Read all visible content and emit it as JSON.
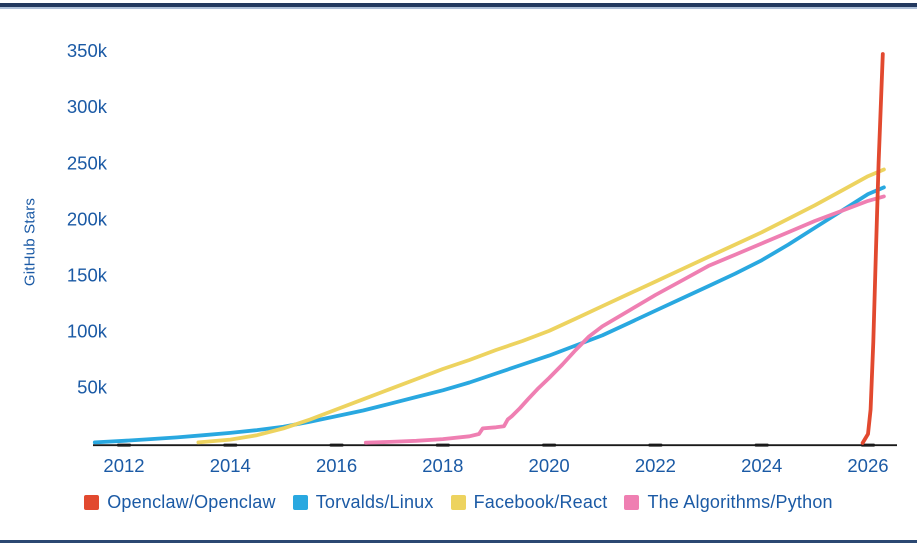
{
  "frame": {
    "top_rule_color": "#23395F",
    "top_rule_accent_color": "#AFC0D8",
    "bottom_rule_color": "#2B4872"
  },
  "chart_data": {
    "type": "line",
    "title": "",
    "xlabel": "",
    "ylabel": "GitHub Stars",
    "x_tick_labels": [
      "2012",
      "2014",
      "2016",
      "2018",
      "2020",
      "2022",
      "2024",
      "2026"
    ],
    "x_tick_values": [
      2012,
      2014,
      2016,
      2018,
      2020,
      2022,
      2024,
      2026
    ],
    "y_tick_labels": [
      "50k",
      "100k",
      "150k",
      "200k",
      "250k",
      "300k",
      "350k"
    ],
    "y_tick_values": [
      50,
      100,
      150,
      200,
      250,
      300,
      350
    ],
    "xlim": [
      2011.4,
      2026.55
    ],
    "ylim": [
      0,
      358
    ],
    "grid": false,
    "legend_position": "bottom",
    "axis_color": "#1a1a1a",
    "label_color": "#1B5AA5",
    "series": [
      {
        "name": "Openclaw/Openclaw",
        "color": "#E2492F",
        "draw_order": 4,
        "points": [
          [
            2025.9,
            0
          ],
          [
            2026.0,
            8
          ],
          [
            2026.05,
            30
          ],
          [
            2026.1,
            90
          ],
          [
            2026.15,
            170
          ],
          [
            2026.2,
            250
          ],
          [
            2026.28,
            347
          ]
        ]
      },
      {
        "name": "Torvalds/Linux",
        "color": "#29A8E0",
        "draw_order": 1,
        "points": [
          [
            2011.45,
            0.5
          ],
          [
            2012,
            2
          ],
          [
            2012.5,
            3.5
          ],
          [
            2013,
            5
          ],
          [
            2013.5,
            7
          ],
          [
            2014,
            9
          ],
          [
            2014.5,
            11.5
          ],
          [
            2015,
            14.5
          ],
          [
            2015.5,
            19
          ],
          [
            2016,
            24
          ],
          [
            2016.5,
            29
          ],
          [
            2017,
            35
          ],
          [
            2017.5,
            41
          ],
          [
            2018,
            47
          ],
          [
            2018.5,
            54
          ],
          [
            2019,
            62
          ],
          [
            2019.5,
            70
          ],
          [
            2020,
            78
          ],
          [
            2020.5,
            87
          ],
          [
            2021,
            96
          ],
          [
            2021.5,
            107
          ],
          [
            2022,
            118
          ],
          [
            2022.5,
            129
          ],
          [
            2023,
            140
          ],
          [
            2023.5,
            151
          ],
          [
            2024,
            163
          ],
          [
            2024.5,
            177
          ],
          [
            2025,
            192
          ],
          [
            2025.5,
            207
          ],
          [
            2026,
            222
          ],
          [
            2026.3,
            228
          ]
        ]
      },
      {
        "name": "Facebook/React",
        "color": "#EDD35F",
        "draw_order": 2,
        "points": [
          [
            2013.4,
            0.5
          ],
          [
            2014,
            3
          ],
          [
            2014.5,
            7
          ],
          [
            2015,
            13
          ],
          [
            2015.5,
            21
          ],
          [
            2016,
            30
          ],
          [
            2016.5,
            39
          ],
          [
            2017,
            48
          ],
          [
            2017.5,
            57
          ],
          [
            2018,
            66
          ],
          [
            2018.5,
            74
          ],
          [
            2019,
            83
          ],
          [
            2019.5,
            91
          ],
          [
            2020,
            100
          ],
          [
            2020.5,
            111
          ],
          [
            2021,
            122
          ],
          [
            2021.5,
            133
          ],
          [
            2022,
            144
          ],
          [
            2022.5,
            155
          ],
          [
            2023,
            166
          ],
          [
            2023.5,
            177
          ],
          [
            2024,
            188
          ],
          [
            2024.5,
            200
          ],
          [
            2025,
            212
          ],
          [
            2025.5,
            225
          ],
          [
            2026,
            238
          ],
          [
            2026.3,
            244
          ]
        ]
      },
      {
        "name": "The Algorithms/Python",
        "color": "#EF7FB2",
        "draw_order": 3,
        "points": [
          [
            2016.55,
            0.3
          ],
          [
            2017,
            1
          ],
          [
            2017.5,
            2
          ],
          [
            2018,
            3.5
          ],
          [
            2018.5,
            6
          ],
          [
            2018.68,
            8
          ],
          [
            2018.75,
            13
          ],
          [
            2019.0,
            14
          ],
          [
            2019.15,
            15
          ],
          [
            2019.22,
            21
          ],
          [
            2019.3,
            24
          ],
          [
            2019.45,
            31
          ],
          [
            2019.6,
            39
          ],
          [
            2019.8,
            49
          ],
          [
            2020,
            58
          ],
          [
            2020.25,
            70
          ],
          [
            2020.5,
            83
          ],
          [
            2020.75,
            95
          ],
          [
            2021,
            104
          ],
          [
            2021.5,
            118
          ],
          [
            2022,
            132
          ],
          [
            2022.5,
            145
          ],
          [
            2023,
            158
          ],
          [
            2023.5,
            168
          ],
          [
            2024,
            178
          ],
          [
            2024.5,
            188
          ],
          [
            2025,
            198
          ],
          [
            2025.5,
            207
          ],
          [
            2026,
            216
          ],
          [
            2026.3,
            220
          ]
        ]
      }
    ]
  }
}
